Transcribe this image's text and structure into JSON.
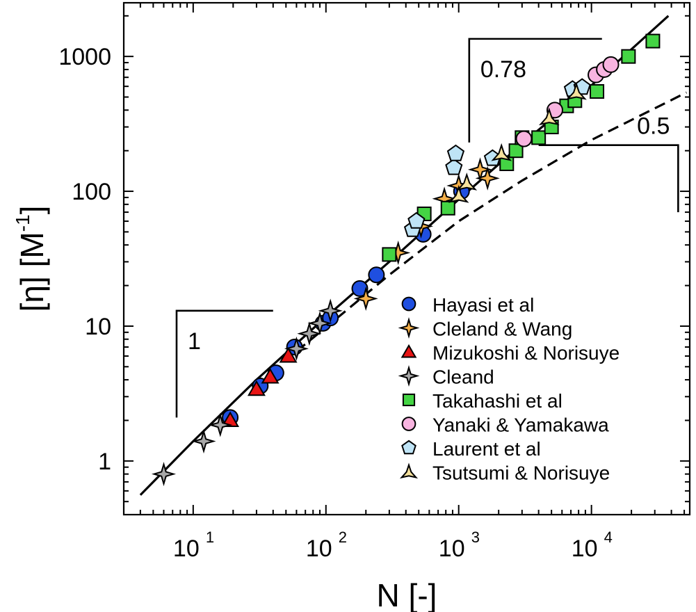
{
  "chart_data": {
    "type": "scatter",
    "xscale": "log",
    "yscale": "log",
    "xlim": [
      3,
      55000
    ],
    "ylim": [
      0.4,
      2500
    ],
    "xlabel": "N [-]",
    "ylabel_main": "[η] [M",
    "ylabel_sup": "-1",
    "ylabel_close": "]",
    "x_ticks": [
      {
        "value": 10,
        "base": "10",
        "exp": "1"
      },
      {
        "value": 100,
        "base": "10",
        "exp": "2"
      },
      {
        "value": 1000,
        "base": "10",
        "exp": "3"
      },
      {
        "value": 10000,
        "base": "10",
        "exp": "4"
      }
    ],
    "y_ticks": [
      {
        "value": 1,
        "label": "1"
      },
      {
        "value": 10,
        "label": "10"
      },
      {
        "value": 100,
        "label": "100"
      },
      {
        "value": 1000,
        "label": "1000"
      }
    ],
    "legend_position": "lower-right",
    "series": [
      {
        "name": "Hayasi et al",
        "marker": "circle",
        "color": "#1f4fe0",
        "x": [
          19,
          32,
          42,
          58,
          95,
          108,
          180,
          240,
          540,
          1050
        ],
        "y": [
          2.1,
          3.6,
          4.5,
          7.0,
          10.5,
          11.5,
          19,
          24,
          48,
          100
        ]
      },
      {
        "name": "Cleland & Wang",
        "marker": "star4",
        "color": "#f5b04a",
        "x": [
          200,
          350,
          520,
          780,
          1000,
          1450,
          1650
        ],
        "y": [
          16,
          35,
          55,
          88,
          110,
          145,
          125
        ]
      },
      {
        "name": "Mizukoshi & Norisuye",
        "marker": "triangle",
        "color": "#e81515",
        "x": [
          19,
          30,
          38,
          52
        ],
        "y": [
          2.0,
          3.4,
          4.2,
          6.0
        ]
      },
      {
        "name": "Cleand",
        "marker": "star4",
        "color": "#a8a8a8",
        "x": [
          6,
          12,
          16,
          60,
          75,
          90,
          108
        ],
        "y": [
          0.8,
          1.4,
          1.85,
          6.8,
          8.8,
          10.5,
          13
        ]
      },
      {
        "name": "Takahashi et al",
        "marker": "square",
        "color": "#44d444",
        "x": [
          300,
          550,
          830,
          2300,
          2700,
          3000,
          4000,
          5000,
          6500,
          7500,
          11000,
          19000,
          29000
        ],
        "y": [
          34,
          68,
          75,
          160,
          200,
          250,
          250,
          300,
          430,
          470,
          550,
          1000,
          1300
        ]
      },
      {
        "name": "Yanaki & Yamakawa",
        "marker": "circle",
        "color": "#f8b4e0",
        "x": [
          3100,
          5300,
          10800,
          12500,
          14000
        ],
        "y": [
          245,
          400,
          730,
          800,
          870
        ]
      },
      {
        "name": "Laurent et al",
        "marker": "pentagon",
        "color": "#bfe4f6",
        "x": [
          450,
          480,
          920,
          950,
          1800,
          7200,
          8500
        ],
        "y": [
          52,
          60,
          150,
          190,
          175,
          570,
          590
        ]
      },
      {
        "name": "Tsutsumi & Norisuye",
        "marker": "star3",
        "color": "#f7e29c",
        "x": [
          1000,
          1150,
          2100,
          4800,
          7700
        ],
        "y": [
          93,
          115,
          190,
          350,
          540
        ]
      }
    ],
    "fit_line": {
      "style": "solid",
      "x": [
        4,
        10,
        30,
        100,
        300,
        1000,
        3000,
        10000,
        38000
      ],
      "y": [
        0.56,
        1.4,
        4.0,
        11.7,
        30,
        87,
        225,
        610,
        2000
      ]
    },
    "fit_dashed": {
      "style": "dashed",
      "x": [
        60,
        100,
        300,
        1000,
        3000,
        10000,
        52000
      ],
      "y": [
        6.5,
        9.8,
        24,
        60,
        120,
        240,
        540
      ]
    },
    "slope_triangles": [
      {
        "label": "1",
        "corner": [
          7.5,
          13
        ],
        "x2": 40,
        "y2": 2.1,
        "orientation": "left-vertical"
      },
      {
        "label": "0.78",
        "corner": [
          1200,
          1350
        ],
        "x2": 12000,
        "y2": 230,
        "orientation": "left-vertical"
      },
      {
        "label": "0.5",
        "corner": [
          45000,
          220
        ],
        "x2": 4000,
        "y2": 70,
        "orientation": "right-vertical"
      }
    ]
  }
}
